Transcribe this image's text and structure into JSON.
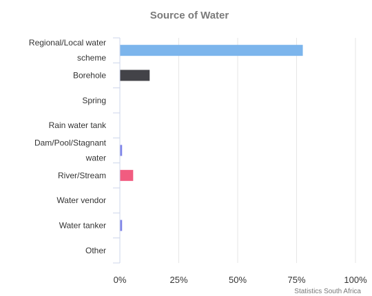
{
  "chart_data": {
    "type": "bar",
    "orientation": "horizontal",
    "title": "Source of Water",
    "credit": "Statistics South Africa",
    "categories": [
      [
        "Regional/Local water",
        "scheme"
      ],
      [
        "Borehole"
      ],
      [
        "Spring"
      ],
      [
        "Rain water tank"
      ],
      [
        "Dam/Pool/Stagnant",
        "water"
      ],
      [
        "River/Stream"
      ],
      [
        "Water vendor"
      ],
      [
        "Water tanker"
      ],
      [
        "Other"
      ]
    ],
    "values": [
      77.5,
      12.5,
      0,
      0,
      0.8,
      5.5,
      0,
      0.8,
      0
    ],
    "colors": [
      "#7cb5ec",
      "#434348",
      "#90ed7d",
      "#f7a35c",
      "#8085e9",
      "#f15c80",
      "#e4d354",
      "#8085e8",
      "#8d4653"
    ],
    "xlim": [
      0,
      100
    ],
    "ticks": [
      "0%",
      "25%",
      "50%",
      "75%",
      "100%"
    ],
    "tick_values": [
      0,
      25,
      50,
      75,
      100
    ],
    "grid": true,
    "legend": "none"
  }
}
